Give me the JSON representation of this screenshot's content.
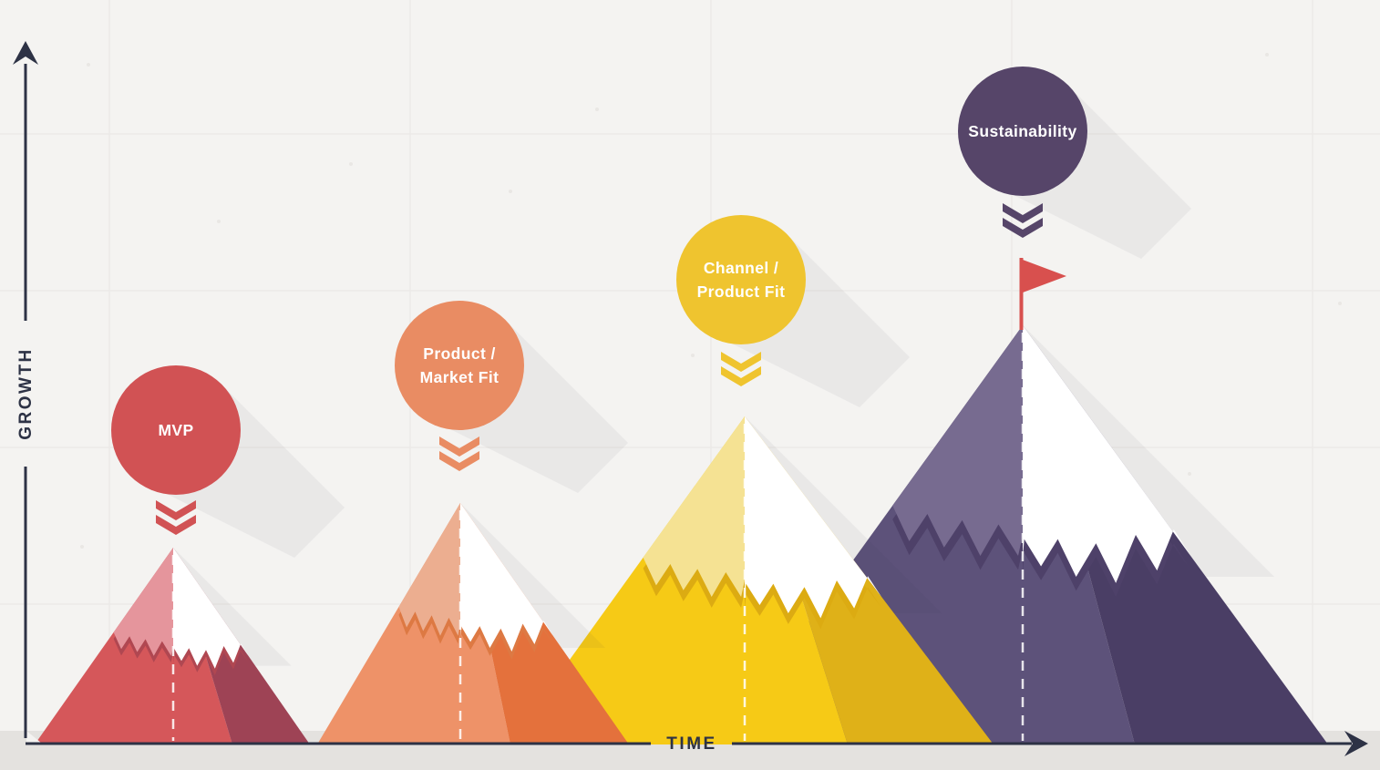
{
  "diagram": {
    "y_axis_label": "GROWTH",
    "x_axis_label": "TIME",
    "axis_color": "#2d3245",
    "background_color": "#f4f3f1",
    "ground_color": "#e4e2df",
    "grid_color": "#eceae7",
    "snow_color": "#ffffff",
    "flag_color": "#d8504e",
    "shadow_color": "rgba(60,55,80,0.055)",
    "dash_color": "rgba(255,255,255,0.85)"
  },
  "stages": [
    {
      "id": "mvp",
      "label_line1": "MVP",
      "label_line2": "",
      "circle_color": "#d15254",
      "mountain": {
        "left_face": "#d5575a",
        "right_face": "#9e4355",
        "snow_tint": "#e5959c",
        "accent": "#b04751"
      }
    },
    {
      "id": "product-market-fit",
      "label_line1": "Product /",
      "label_line2": "Market Fit",
      "circle_color": "#e98c63",
      "mountain": {
        "left_face": "#ee9268",
        "right_face": "#e4713c",
        "snow_tint": "#ecae90",
        "accent": "#dd7943"
      }
    },
    {
      "id": "channel-product-fit",
      "label_line1": "Channel /",
      "label_line2": "Product Fit",
      "circle_color": "#efc42f",
      "mountain": {
        "left_face": "#f6ca16",
        "right_face": "#dfb118",
        "snow_tint": "#f5e293",
        "accent": "#dcab12"
      }
    },
    {
      "id": "sustainability",
      "label_line1": "Sustainability",
      "label_line2": "",
      "circle_color": "#564569",
      "mountain": {
        "left_face": "#5d527a",
        "right_face": "#4a3e65",
        "snow_tint": "#776b90",
        "accent": "#4e4169"
      }
    }
  ]
}
